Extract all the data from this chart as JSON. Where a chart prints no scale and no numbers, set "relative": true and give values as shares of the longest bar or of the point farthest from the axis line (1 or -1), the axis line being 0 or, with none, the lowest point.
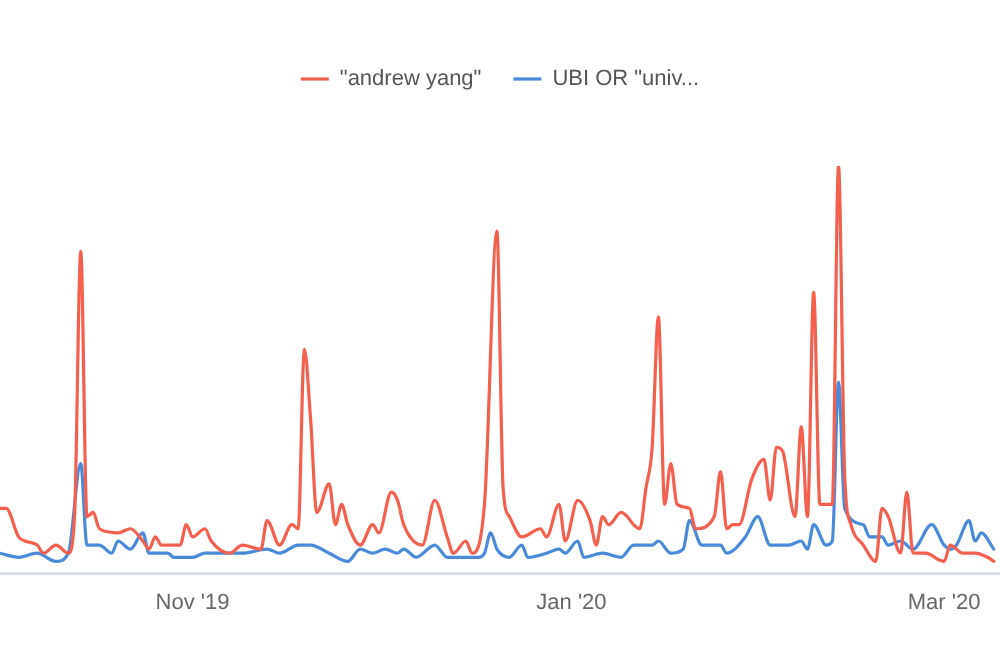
{
  "chart_data": {
    "type": "line",
    "relative": true,
    "legend": "top",
    "grid": false,
    "marker": "none",
    "line_style": "solid",
    "xlim": [
      "2019-10-01",
      "2020-03-10"
    ],
    "xticks": [
      {
        "value": "2019-11-01",
        "label": "Nov '19"
      },
      {
        "value": "2020-01-01",
        "label": "Jan '20"
      },
      {
        "value": "2020-03-01",
        "label": "Mar '20"
      }
    ],
    "series": [
      {
        "name": "\"andrew yang\"",
        "color": "#f4604f",
        "x": [
          "2019-10-01",
          "2019-10-02",
          "2019-10-04",
          "2019-10-05",
          "2019-10-07",
          "2019-10-08",
          "2019-10-10",
          "2019-10-12",
          "2019-10-13",
          "2019-10-14",
          "2019-10-15",
          "2019-10-16",
          "2019-10-17",
          "2019-10-20",
          "2019-10-22",
          "2019-10-24",
          "2019-10-25",
          "2019-10-26",
          "2019-10-27",
          "2019-10-30",
          "2019-10-31",
          "2019-11-01",
          "2019-11-03",
          "2019-11-04",
          "2019-11-07",
          "2019-11-09",
          "2019-11-12",
          "2019-11-13",
          "2019-11-15",
          "2019-11-17",
          "2019-11-18",
          "2019-11-19",
          "2019-11-20",
          "2019-11-21",
          "2019-11-23",
          "2019-11-24",
          "2019-11-25",
          "2019-11-26",
          "2019-11-28",
          "2019-11-30",
          "2019-12-01",
          "2019-12-03",
          "2019-12-04",
          "2019-12-05",
          "2019-12-08",
          "2019-12-10",
          "2019-12-12",
          "2019-12-13",
          "2019-12-15",
          "2019-12-16",
          "2019-12-18",
          "2019-12-20",
          "2019-12-21",
          "2019-12-22",
          "2019-12-24",
          "2019-12-27",
          "2019-12-28",
          "2019-12-30",
          "2019-12-31",
          "2020-01-02",
          "2020-01-04",
          "2020-01-05",
          "2020-01-06",
          "2020-01-07",
          "2020-01-09",
          "2020-01-10",
          "2020-01-11",
          "2020-01-12",
          "2020-01-13",
          "2020-01-14",
          "2020-01-15",
          "2020-01-16",
          "2020-01-17",
          "2020-01-18",
          "2020-01-20",
          "2020-01-21",
          "2020-01-24",
          "2020-01-25",
          "2020-01-26",
          "2020-01-27",
          "2020-01-28",
          "2020-01-30",
          "2020-02-01",
          "2020-02-02",
          "2020-02-03",
          "2020-02-04",
          "2020-02-06",
          "2020-02-07",
          "2020-02-08",
          "2020-02-09",
          "2020-02-10",
          "2020-02-12",
          "2020-02-13",
          "2020-02-14",
          "2020-02-15",
          "2020-02-17",
          "2020-02-19",
          "2020-02-20",
          "2020-02-21",
          "2020-02-23",
          "2020-02-24",
          "2020-02-25",
          "2020-02-27",
          "2020-03-01",
          "2020-03-02",
          "2020-03-04",
          "2020-03-06",
          "2020-03-08",
          "2020-03-09"
        ],
        "values": [
          0.16,
          0.16,
          0.09,
          0.08,
          0.07,
          0.05,
          0.07,
          0.05,
          0.14,
          0.79,
          0.14,
          0.15,
          0.11,
          0.1,
          0.11,
          0.08,
          0.06,
          0.09,
          0.07,
          0.07,
          0.12,
          0.09,
          0.11,
          0.08,
          0.05,
          0.07,
          0.06,
          0.13,
          0.07,
          0.12,
          0.11,
          0.55,
          0.38,
          0.15,
          0.22,
          0.12,
          0.17,
          0.12,
          0.07,
          0.12,
          0.1,
          0.2,
          0.18,
          0.12,
          0.07,
          0.18,
          0.09,
          0.05,
          0.08,
          0.05,
          0.17,
          0.84,
          0.21,
          0.14,
          0.09,
          0.11,
          0.09,
          0.17,
          0.08,
          0.18,
          0.13,
          0.07,
          0.14,
          0.12,
          0.15,
          0.14,
          0.12,
          0.11,
          0.21,
          0.31,
          0.63,
          0.17,
          0.27,
          0.17,
          0.16,
          0.11,
          0.14,
          0.25,
          0.11,
          0.12,
          0.12,
          0.23,
          0.28,
          0.18,
          0.31,
          0.3,
          0.14,
          0.36,
          0.14,
          0.69,
          0.17,
          0.17,
          1.0,
          0.24,
          0.12,
          0.07,
          0.03,
          0.16,
          0.14,
          0.05,
          0.2,
          0.05,
          0.05,
          0.03,
          0.07,
          0.05,
          0.05,
          0.04,
          0.03
        ]
      },
      {
        "name": "UBI OR \"univ...",
        "color": "#4a8ad9",
        "x": [
          "2019-10-01",
          "2019-10-04",
          "2019-10-07",
          "2019-10-10",
          "2019-10-12",
          "2019-10-14",
          "2019-10-15",
          "2019-10-17",
          "2019-10-19",
          "2019-10-20",
          "2019-10-22",
          "2019-10-24",
          "2019-10-25",
          "2019-10-28",
          "2019-10-29",
          "2019-11-01",
          "2019-11-03",
          "2019-11-05",
          "2019-11-07",
          "2019-11-09",
          "2019-11-13",
          "2019-11-15",
          "2019-11-18",
          "2019-11-20",
          "2019-11-23",
          "2019-11-26",
          "2019-11-28",
          "2019-11-30",
          "2019-12-02",
          "2019-12-04",
          "2019-12-05",
          "2019-12-07",
          "2019-12-10",
          "2019-12-12",
          "2019-12-15",
          "2019-12-17",
          "2019-12-18",
          "2019-12-19",
          "2019-12-20",
          "2019-12-22",
          "2019-12-24",
          "2019-12-25",
          "2019-12-28",
          "2019-12-30",
          "2019-12-31",
          "2020-01-02",
          "2020-01-03",
          "2020-01-06",
          "2020-01-09",
          "2020-01-11",
          "2020-01-14",
          "2020-01-15",
          "2020-01-17",
          "2020-01-19",
          "2020-01-20",
          "2020-01-22",
          "2020-01-25",
          "2020-01-26",
          "2020-01-29",
          "2020-01-31",
          "2020-02-02",
          "2020-02-05",
          "2020-02-07",
          "2020-02-08",
          "2020-02-09",
          "2020-02-11",
          "2020-02-12",
          "2020-02-13",
          "2020-02-14",
          "2020-02-17",
          "2020-02-18",
          "2020-02-20",
          "2020-02-21",
          "2020-02-23",
          "2020-02-25",
          "2020-02-28",
          "2020-03-01",
          "2020-03-02",
          "2020-03-03",
          "2020-03-05",
          "2020-03-06",
          "2020-03-07",
          "2020-03-09"
        ],
        "values": [
          0.05,
          0.04,
          0.05,
          0.03,
          0.05,
          0.27,
          0.07,
          0.07,
          0.05,
          0.08,
          0.06,
          0.1,
          0.05,
          0.05,
          0.04,
          0.04,
          0.05,
          0.05,
          0.05,
          0.05,
          0.06,
          0.05,
          0.07,
          0.07,
          0.05,
          0.03,
          0.06,
          0.05,
          0.06,
          0.05,
          0.06,
          0.04,
          0.07,
          0.04,
          0.04,
          0.04,
          0.05,
          0.1,
          0.06,
          0.04,
          0.07,
          0.04,
          0.05,
          0.06,
          0.05,
          0.08,
          0.04,
          0.05,
          0.04,
          0.07,
          0.07,
          0.08,
          0.05,
          0.06,
          0.13,
          0.07,
          0.07,
          0.05,
          0.09,
          0.14,
          0.07,
          0.07,
          0.08,
          0.06,
          0.12,
          0.07,
          0.08,
          0.47,
          0.16,
          0.12,
          0.09,
          0.09,
          0.07,
          0.08,
          0.06,
          0.12,
          0.07,
          0.06,
          0.07,
          0.13,
          0.08,
          0.1,
          0.06
        ]
      }
    ]
  }
}
